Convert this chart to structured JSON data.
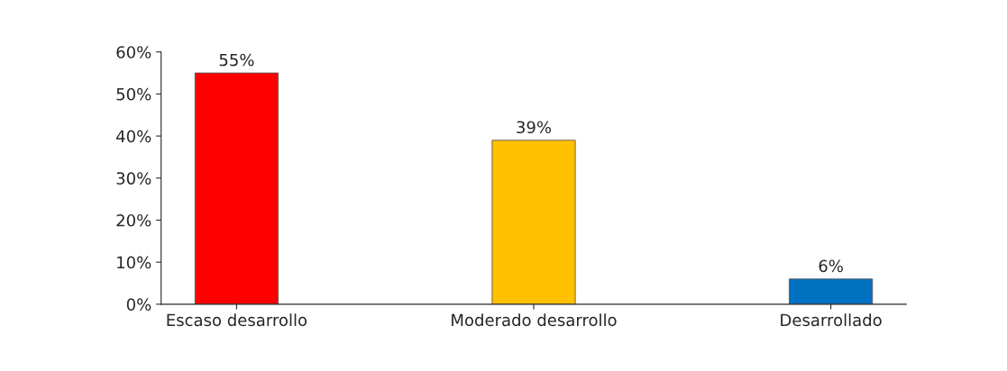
{
  "chart_data": {
    "type": "bar",
    "categories": [
      "Escaso desarrollo",
      "Moderado desarrollo",
      "Desarrollado"
    ],
    "values": [
      55,
      39,
      6
    ],
    "colors": [
      "#ff0000",
      "#ffc000",
      "#0070c0"
    ],
    "value_labels": [
      "55%",
      "39%",
      "6%"
    ],
    "ylim": [
      0,
      60
    ],
    "yticks": [
      {
        "value": 0,
        "label": "0%"
      },
      {
        "value": 10,
        "label": "10%"
      },
      {
        "value": 20,
        "label": "20%"
      },
      {
        "value": 30,
        "label": "30%"
      },
      {
        "value": 40,
        "label": "40%"
      },
      {
        "value": 50,
        "label": "50%"
      },
      {
        "value": 60,
        "label": "60%"
      }
    ],
    "grid": false,
    "legend": false
  }
}
